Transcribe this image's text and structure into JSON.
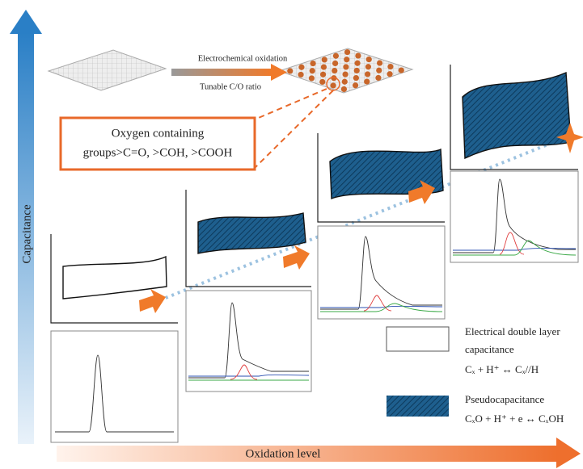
{
  "axes": {
    "y_label": "Capacitance",
    "x_label": "Oxidation level"
  },
  "process": {
    "step": "Electrochemical oxidation",
    "note": "Tunable C/O ratio"
  },
  "callout": {
    "lines": [
      "Oxygen containing",
      "groups>C=O, >COH, >COOH"
    ]
  },
  "legend": [
    {
      "label_lines": [
        "Electrical double layer",
        "capacitance"
      ],
      "equation": "Cₓ + H⁺ ↔ Cₓ//H"
    },
    {
      "label_lines": [
        "Pseudocapacitance"
      ],
      "equation": "CₓO + H⁺ + e ↔ CₓOH"
    }
  ]
}
